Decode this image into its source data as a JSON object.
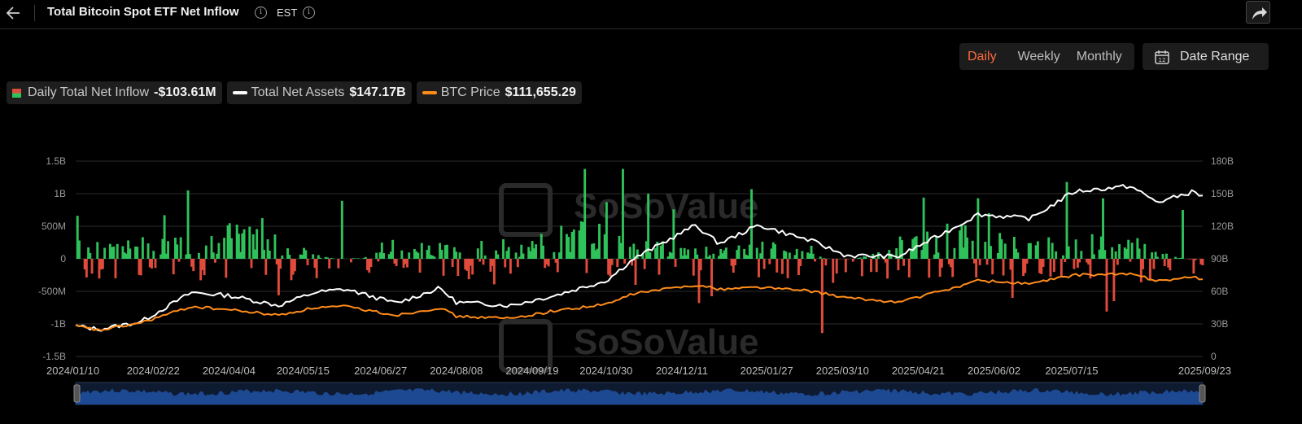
{
  "header": {
    "title": "Total Bitcoin Spot ETF Net Inflow",
    "timezone": "EST"
  },
  "toolbar": {
    "periods": [
      "Daily",
      "Weekly",
      "Monthly"
    ],
    "active_period": "Daily",
    "date_range_label": "Date Range"
  },
  "legend": [
    {
      "label": "Daily Total Net Inflow",
      "value": "-$103.61M",
      "swatch": "bar"
    },
    {
      "label": "Total Net Assets",
      "value": "$147.17B",
      "swatch": "line",
      "color": "#ffffff"
    },
    {
      "label": "BTC Price",
      "value": "$111,655.29",
      "swatch": "line",
      "color": "#ff8c1a"
    }
  ],
  "colors": {
    "positive": "#2fc25b",
    "negative": "#e04b3c",
    "total_net_assets": "#ffffff",
    "btc_price": "#ff8c1a",
    "accent": "#ff6a3d",
    "navigator": "#1f4f9e"
  },
  "chart_data": {
    "type": "bar",
    "left_axis": {
      "ticks": [
        "1.5B",
        "1B",
        "500M",
        "0",
        "-500M",
        "-1B",
        "-1.5B"
      ],
      "values": [
        1.5,
        1.0,
        0.5,
        0,
        -0.5,
        -1.0,
        -1.5
      ],
      "unit": "USD billions",
      "ylim": [
        -1.5,
        1.5
      ]
    },
    "right_axis": {
      "ticks": [
        "180B",
        "150B",
        "120B",
        "90B",
        "60B",
        "30B",
        "0"
      ],
      "values": [
        180,
        150,
        120,
        90,
        60,
        30,
        0
      ],
      "unit": "USD billions",
      "ylim": [
        0,
        180
      ]
    },
    "x_ticks": [
      "2024/01/10",
      "2024/02/22",
      "2024/04/04",
      "2024/05/15",
      "2024/06/27",
      "2024/08/08",
      "2024/09/19",
      "2024/10/30",
      "2024/12/11",
      "2025/01/27",
      "2025/03/10",
      "2025/04/21",
      "2025/06/02",
      "2025/07/15",
      "2025/09/23"
    ],
    "grid": true,
    "daily_net_inflow_billions": [
      {
        "date": "2024/01/10",
        "value": 0.0
      },
      {
        "date": "2024/01/11",
        "value": 0.66
      },
      {
        "date": "2024/02/28",
        "value": 0.67
      },
      {
        "date": "2024/03/12",
        "value": 1.05
      },
      {
        "date": "2024/03/19",
        "value": -0.33
      },
      {
        "date": "2024/05/01",
        "value": -0.56
      },
      {
        "date": "2024/06/05",
        "value": 0.89
      },
      {
        "date": "2024/09/19",
        "value": 0.16
      },
      {
        "date": "2024/10/29",
        "value": 0.87
      },
      {
        "date": "2024/11/07",
        "value": 1.38
      },
      {
        "date": "2024/11/14",
        "value": -0.4
      },
      {
        "date": "2024/11/21",
        "value": 1.0
      },
      {
        "date": "2024/12/05",
        "value": 0.76
      },
      {
        "date": "2024/12/19",
        "value": -0.68
      },
      {
        "date": "2025/01/17",
        "value": 1.07
      },
      {
        "date": "2025/02/25",
        "value": -1.14
      },
      {
        "date": "2025/03/03",
        "value": -0.37
      },
      {
        "date": "2025/04/22",
        "value": 0.94
      },
      {
        "date": "2025/05/22",
        "value": 0.93
      },
      {
        "date": "2025/06/10",
        "value": -0.6
      },
      {
        "date": "2025/07/10",
        "value": 1.18
      },
      {
        "date": "2025/08/01",
        "value": -0.81
      },
      {
        "date": "2025/09/12",
        "value": 0.75
      },
      {
        "date": "2025/09/23",
        "value": -0.1
      }
    ],
    "series": [
      {
        "name": "Total Net Assets",
        "axis": "right",
        "points": [
          {
            "date": "2024/01/10",
            "value": 28
          },
          {
            "date": "2024/01/23",
            "value": 25
          },
          {
            "date": "2024/02/15",
            "value": 32
          },
          {
            "date": "2024/03/14",
            "value": 59
          },
          {
            "date": "2024/04/04",
            "value": 56
          },
          {
            "date": "2024/05/01",
            "value": 47
          },
          {
            "date": "2024/05/21",
            "value": 59
          },
          {
            "date": "2024/06/07",
            "value": 62
          },
          {
            "date": "2024/07/05",
            "value": 49
          },
          {
            "date": "2024/07/29",
            "value": 63
          },
          {
            "date": "2024/08/07",
            "value": 50
          },
          {
            "date": "2024/09/06",
            "value": 47
          },
          {
            "date": "2024/09/30",
            "value": 56
          },
          {
            "date": "2024/10/29",
            "value": 70
          },
          {
            "date": "2024/11/13",
            "value": 90
          },
          {
            "date": "2024/12/17",
            "value": 121
          },
          {
            "date": "2024/12/30",
            "value": 104
          },
          {
            "date": "2025/01/21",
            "value": 121
          },
          {
            "date": "2025/02/20",
            "value": 106
          },
          {
            "date": "2025/03/10",
            "value": 93
          },
          {
            "date": "2025/04/08",
            "value": 92
          },
          {
            "date": "2025/05/08",
            "value": 118
          },
          {
            "date": "2025/05/22",
            "value": 131
          },
          {
            "date": "2025/06/20",
            "value": 127
          },
          {
            "date": "2025/07/14",
            "value": 152
          },
          {
            "date": "2025/08/14",
            "value": 157
          },
          {
            "date": "2025/08/29",
            "value": 142
          },
          {
            "date": "2025/09/18",
            "value": 152
          },
          {
            "date": "2025/09/23",
            "value": 147.17
          }
        ]
      },
      {
        "name": "BTC Price",
        "axis": "right",
        "note_scale": "plotted against right axis shape",
        "points": [
          {
            "date": "2024/01/10",
            "value": 28
          },
          {
            "date": "2024/01/23",
            "value": 24
          },
          {
            "date": "2024/02/15",
            "value": 31
          },
          {
            "date": "2024/03/14",
            "value": 46
          },
          {
            "date": "2024/04/04",
            "value": 43
          },
          {
            "date": "2024/05/01",
            "value": 38
          },
          {
            "date": "2024/05/21",
            "value": 45
          },
          {
            "date": "2024/06/07",
            "value": 46
          },
          {
            "date": "2024/07/05",
            "value": 38
          },
          {
            "date": "2024/07/29",
            "value": 45
          },
          {
            "date": "2024/08/07",
            "value": 37
          },
          {
            "date": "2024/09/06",
            "value": 35
          },
          {
            "date": "2024/09/30",
            "value": 42
          },
          {
            "date": "2024/10/29",
            "value": 48
          },
          {
            "date": "2024/11/13",
            "value": 58
          },
          {
            "date": "2024/12/17",
            "value": 66
          },
          {
            "date": "2024/12/30",
            "value": 62
          },
          {
            "date": "2025/01/21",
            "value": 64
          },
          {
            "date": "2025/02/20",
            "value": 60
          },
          {
            "date": "2025/03/10",
            "value": 54
          },
          {
            "date": "2025/04/08",
            "value": 50
          },
          {
            "date": "2025/05/08",
            "value": 63
          },
          {
            "date": "2025/05/22",
            "value": 70
          },
          {
            "date": "2025/06/20",
            "value": 67
          },
          {
            "date": "2025/07/14",
            "value": 75
          },
          {
            "date": "2025/08/14",
            "value": 76
          },
          {
            "date": "2025/08/29",
            "value": 70
          },
          {
            "date": "2025/09/18",
            "value": 73
          },
          {
            "date": "2025/09/23",
            "value": 71
          }
        ]
      }
    ]
  }
}
